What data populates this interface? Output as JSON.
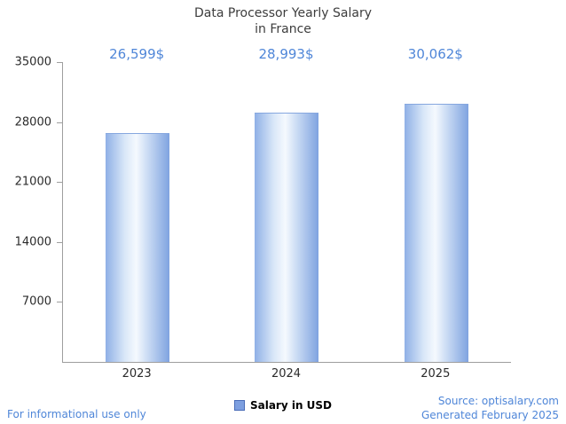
{
  "title": {
    "line1": "Data Processor Yearly Salary",
    "line2": "in France"
  },
  "chart_data": {
    "type": "bar",
    "title": "Data Processor Yearly Salary in France",
    "categories": [
      "2023",
      "2024",
      "2025"
    ],
    "values": [
      26599,
      28993,
      30062
    ],
    "value_labels": [
      "26,599$",
      "28,993$",
      "30,062$"
    ],
    "xlabel": "",
    "ylabel": "",
    "ylim": [
      0,
      35000
    ],
    "yticks": [
      7000,
      14000,
      21000,
      28000,
      35000
    ],
    "grid": false,
    "legend": [
      "Salary in USD"
    ],
    "legend_position": "bottom-center",
    "bar_gradient": [
      "#8fb0e6",
      "#f5f9fe",
      "#7fa3e0"
    ]
  },
  "legend": {
    "label": "Salary in USD",
    "swatch_color": "#7d9fe0"
  },
  "footer": {
    "left": "For informational use only",
    "right_line1": "Source: optisalary.com",
    "right_line2": "Generated February 2025"
  },
  "colors": {
    "accent_blue": "#4f86d8",
    "axis": "#9e9e9e",
    "title_text": "#3d3d3d"
  }
}
